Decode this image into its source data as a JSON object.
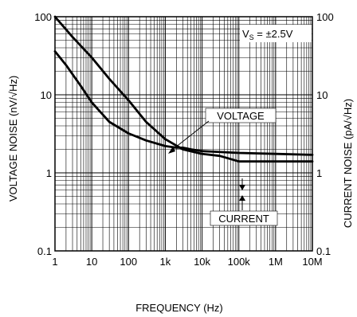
{
  "chart_data": {
    "type": "line",
    "xlabel": "FREQUENCY (Hz)",
    "ylabel_left": "VOLTAGE NOISE (nV/√Hz)",
    "ylabel_right": "CURRENT  NOISE (pA/√Hz)",
    "x_scale": "log",
    "y_scale": "log",
    "xlim": [
      1,
      10000000
    ],
    "ylim": [
      0.1,
      100
    ],
    "grid": true,
    "x_ticks": [
      {
        "value": 1,
        "label": "1"
      },
      {
        "value": 10,
        "label": "10"
      },
      {
        "value": 100,
        "label": "100"
      },
      {
        "value": 1000,
        "label": "1k"
      },
      {
        "value": 10000,
        "label": "10k"
      },
      {
        "value": 100000,
        "label": "100k"
      },
      {
        "value": 1000000,
        "label": "1M"
      },
      {
        "value": 10000000,
        "label": "10M"
      }
    ],
    "y_ticks_left": [
      {
        "value": 0.1,
        "label": "0.1"
      },
      {
        "value": 1,
        "label": "1"
      },
      {
        "value": 10,
        "label": "10"
      },
      {
        "value": 100,
        "label": "100"
      }
    ],
    "y_ticks_right": [
      {
        "value": 0.1,
        "label": "0.1"
      },
      {
        "value": 1,
        "label": "1"
      },
      {
        "value": 10,
        "label": "10"
      },
      {
        "value": 100,
        "label": "100"
      }
    ],
    "condition": {
      "prefix": "V",
      "subscript": "S",
      "suffix": " = ±2.5V"
    },
    "series": [
      {
        "name": "VOLTAGE",
        "x": [
          1,
          2,
          5,
          10,
          30,
          100,
          300,
          1000,
          2000,
          3000,
          5000,
          10000,
          100000,
          1000000,
          10000000
        ],
        "y": [
          36,
          24,
          13,
          8,
          4.5,
          3.2,
          2.6,
          2.2,
          2.1,
          2.1,
          2.0,
          1.9,
          1.8,
          1.75,
          1.7
        ]
      },
      {
        "name": "CURRENT",
        "x": [
          1,
          3,
          10,
          30,
          100,
          300,
          1000,
          3000,
          10000,
          30000,
          60000,
          100000,
          120000,
          1000000,
          10000000
        ],
        "y": [
          100,
          55,
          30,
          16,
          8.5,
          4.5,
          2.7,
          2.0,
          1.75,
          1.65,
          1.5,
          1.4,
          1.4,
          1.4,
          1.4
        ]
      }
    ],
    "annotations": [
      "VOLTAGE",
      "CURRENT"
    ]
  }
}
